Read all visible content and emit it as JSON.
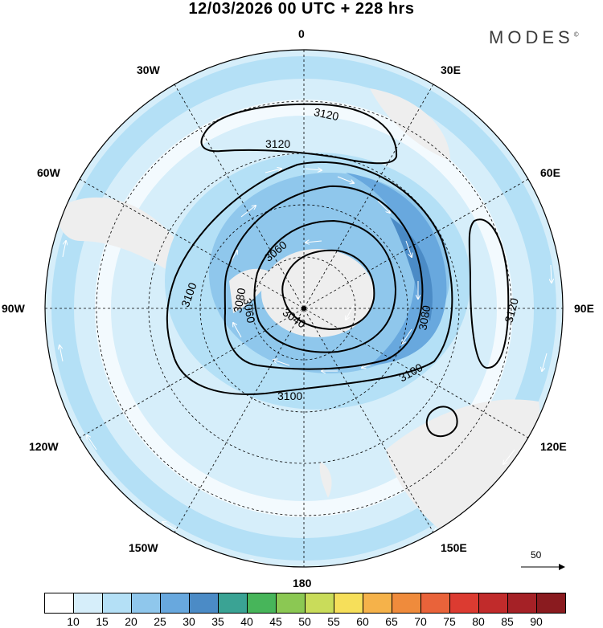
{
  "header": {
    "title": "12/03/2026  00 UTC  + 228 hrs",
    "brand": "MODES",
    "brand_mark": "©"
  },
  "longitude_labels": {
    "top": "0",
    "bottom": "180",
    "left": "90W",
    "right": "90E",
    "upper_left_1": "30W",
    "upper_left_2": "60W",
    "upper_right_1": "30E",
    "upper_right_2": "60E",
    "lower_left_1": "120W",
    "lower_left_2": "150W",
    "lower_right_1": "120E",
    "lower_right_2": "150E"
  },
  "contour_labels": [
    "3120",
    "3120",
    "3100",
    "3100",
    "3060",
    "3060",
    "3080",
    "3040",
    "3080",
    "3100",
    "3120"
  ],
  "reference_vector": {
    "value": "50"
  },
  "colorbar": {
    "ticks": [
      "10",
      "15",
      "20",
      "25",
      "30",
      "35",
      "40",
      "45",
      "50",
      "55",
      "60",
      "65",
      "70",
      "75",
      "80",
      "85",
      "90"
    ],
    "colors": [
      "#ffffff",
      "#d6eefa",
      "#b4e0f6",
      "#8fc7ec",
      "#68a8de",
      "#4b8bc6",
      "#3aa394",
      "#47b55a",
      "#8bc853",
      "#c9dc5a",
      "#f6df5a",
      "#f5b24a",
      "#ef8b3c",
      "#e9633a",
      "#dc3b31",
      "#c12b2b",
      "#a52126",
      "#8a1b1f"
    ]
  },
  "colors": {
    "contour": "#000000",
    "land": "#eeeeee",
    "grid": "#000000",
    "arrow": "#ffffff"
  }
}
